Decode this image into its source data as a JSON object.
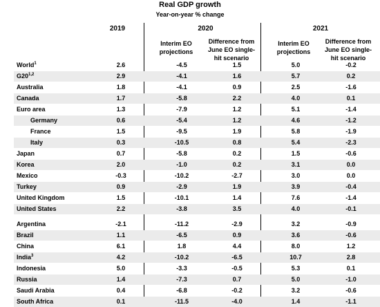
{
  "title": "Real GDP growth",
  "subtitle": "Year-on-year % change",
  "years": {
    "y2019": "2019",
    "y2020": "2020",
    "y2021": "2021"
  },
  "columns": {
    "interim_line1": "Interim EO",
    "interim_line2": "projections",
    "diff_line1": "Difference from",
    "diff_line2": "June EO single-",
    "diff_line3": "hit scenario"
  },
  "rows": [
    {
      "country": "World",
      "sup": "1",
      "v2019": "2.6",
      "p2020": "-4.5",
      "d2020": "1.5",
      "p2021": "5.0",
      "d2021": "-0.2"
    },
    {
      "country": "G20",
      "sup": "1,2",
      "v2019": "2.9",
      "p2020": "-4.1",
      "d2020": "1.6",
      "p2021": "5.7",
      "d2021": "0.2"
    },
    {
      "country": "Australia",
      "sup": "",
      "v2019": "1.8",
      "p2020": "-4.1",
      "d2020": "0.9",
      "p2021": "2.5",
      "d2021": "-1.6"
    },
    {
      "country": "Canada",
      "sup": "",
      "v2019": "1.7",
      "p2020": "-5.8",
      "d2020": "2.2",
      "p2021": "4.0",
      "d2021": "0.1"
    },
    {
      "country": "Euro area",
      "sup": "",
      "v2019": "1.3",
      "p2020": "-7.9",
      "d2020": "1.2",
      "p2021": "5.1",
      "d2021": "-1.4"
    },
    {
      "country": "Germany",
      "sup": "",
      "v2019": "0.6",
      "p2020": "-5.4",
      "d2020": "1.2",
      "p2021": "4.6",
      "d2021": "-1.2"
    },
    {
      "country": "France",
      "sup": "",
      "v2019": "1.5",
      "p2020": "-9.5",
      "d2020": "1.9",
      "p2021": "5.8",
      "d2021": "-1.9"
    },
    {
      "country": "Italy",
      "sup": "",
      "v2019": "0.3",
      "p2020": "-10.5",
      "d2020": "0.8",
      "p2021": "5.4",
      "d2021": "-2.3"
    },
    {
      "country": "Japan",
      "sup": "",
      "v2019": "0.7",
      "p2020": "-5.8",
      "d2020": "0.2",
      "p2021": "1.5",
      "d2021": "-0.6"
    },
    {
      "country": "Korea",
      "sup": "",
      "v2019": "2.0",
      "p2020": "-1.0",
      "d2020": "0.2",
      "p2021": "3.1",
      "d2021": "0.0"
    },
    {
      "country": "Mexico",
      "sup": "",
      "v2019": "-0.3",
      "p2020": "-10.2",
      "d2020": "-2.7",
      "p2021": "3.0",
      "d2021": "0.0"
    },
    {
      "country": "Turkey",
      "sup": "",
      "v2019": "0.9",
      "p2020": "-2.9",
      "d2020": "1.9",
      "p2021": "3.9",
      "d2021": "-0.4"
    },
    {
      "country": "United Kingdom",
      "sup": "",
      "v2019": "1.5",
      "p2020": "-10.1",
      "d2020": "1.4",
      "p2021": "7.6",
      "d2021": "-1.4"
    },
    {
      "country": "United States",
      "sup": "",
      "v2019": "2.2",
      "p2020": "-3.8",
      "d2020": "3.5",
      "p2021": "4.0",
      "d2021": "-0.1"
    },
    {
      "country": "Argentina",
      "sup": "",
      "v2019": "-2.1",
      "p2020": "-11.2",
      "d2020": "-2.9",
      "p2021": "3.2",
      "d2021": "-0.9"
    },
    {
      "country": "Brazil",
      "sup": "",
      "v2019": "1.1",
      "p2020": "-6.5",
      "d2020": "0.9",
      "p2021": "3.6",
      "d2021": "-0.6"
    },
    {
      "country": "China",
      "sup": "",
      "v2019": "6.1",
      "p2020": "1.8",
      "d2020": "4.4",
      "p2021": "8.0",
      "d2021": "1.2"
    },
    {
      "country": "India",
      "sup": "3",
      "v2019": "4.2",
      "p2020": "-10.2",
      "d2020": "-6.5",
      "p2021": "10.7",
      "d2021": "2.8"
    },
    {
      "country": "Indonesia",
      "sup": "",
      "v2019": "5.0",
      "p2020": "-3.3",
      "d2020": "-0.5",
      "p2021": "5.3",
      "d2021": "0.1"
    },
    {
      "country": "Russia",
      "sup": "",
      "v2019": "1.4",
      "p2020": "-7.3",
      "d2020": "0.7",
      "p2021": "5.0",
      "d2021": "-1.0"
    },
    {
      "country": "Saudi Arabia",
      "sup": "",
      "v2019": "0.4",
      "p2020": "-6.8",
      "d2020": "-0.2",
      "p2021": "3.2",
      "d2021": "-0.6"
    },
    {
      "country": "South Africa",
      "sup": "",
      "v2019": "0.1",
      "p2020": "-11.5",
      "d2020": "-4.0",
      "p2021": "1.4",
      "d2021": "-1.1"
    }
  ]
}
